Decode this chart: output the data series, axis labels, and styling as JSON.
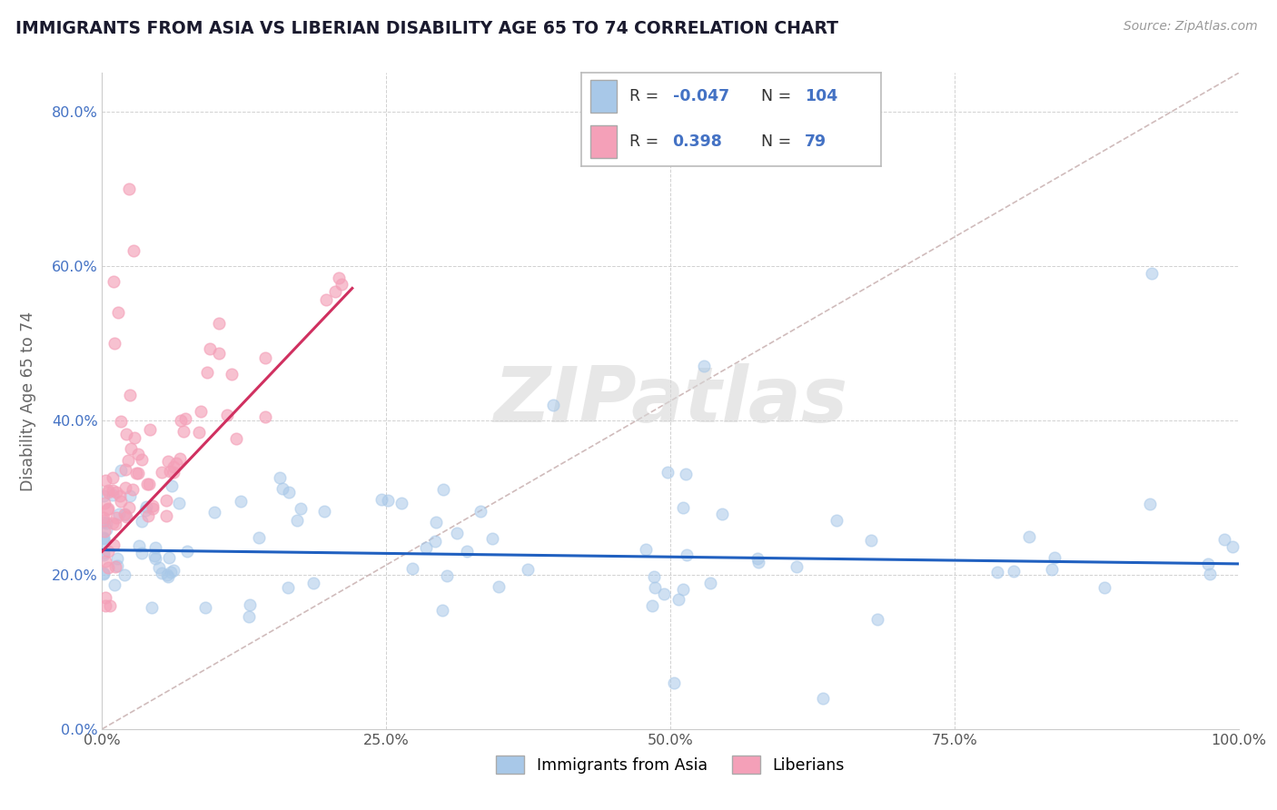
{
  "title": "IMMIGRANTS FROM ASIA VS LIBERIAN DISABILITY AGE 65 TO 74 CORRELATION CHART",
  "source": "Source: ZipAtlas.com",
  "ylabel": "Disability Age 65 to 74",
  "xlim": [
    0.0,
    1.0
  ],
  "ylim": [
    0.0,
    0.85
  ],
  "xticklabels": [
    "0.0%",
    "25.0%",
    "50.0%",
    "75.0%",
    "100.0%"
  ],
  "yticklabels": [
    "0.0%",
    "20.0%",
    "40.0%",
    "60.0%",
    "80.0%"
  ],
  "ytick_vals": [
    0.0,
    0.2,
    0.4,
    0.6,
    0.8
  ],
  "xtick_vals": [
    0.0,
    0.25,
    0.5,
    0.75,
    1.0
  ],
  "legend_blue_r": "-0.047",
  "legend_blue_n": "104",
  "legend_pink_r": "0.398",
  "legend_pink_n": "79",
  "blue_face": "#a8c8e8",
  "pink_face": "#f4a0b8",
  "blue_line": "#2060c0",
  "pink_line": "#d03060",
  "diag_color": "#c8b0b0",
  "bg": "#ffffff",
  "watermark": "ZIPatlas",
  "watermark_color": "#d8d8d8",
  "title_color": "#1a1a2e",
  "axis_color": "#4472c4",
  "label_color": "#666666"
}
